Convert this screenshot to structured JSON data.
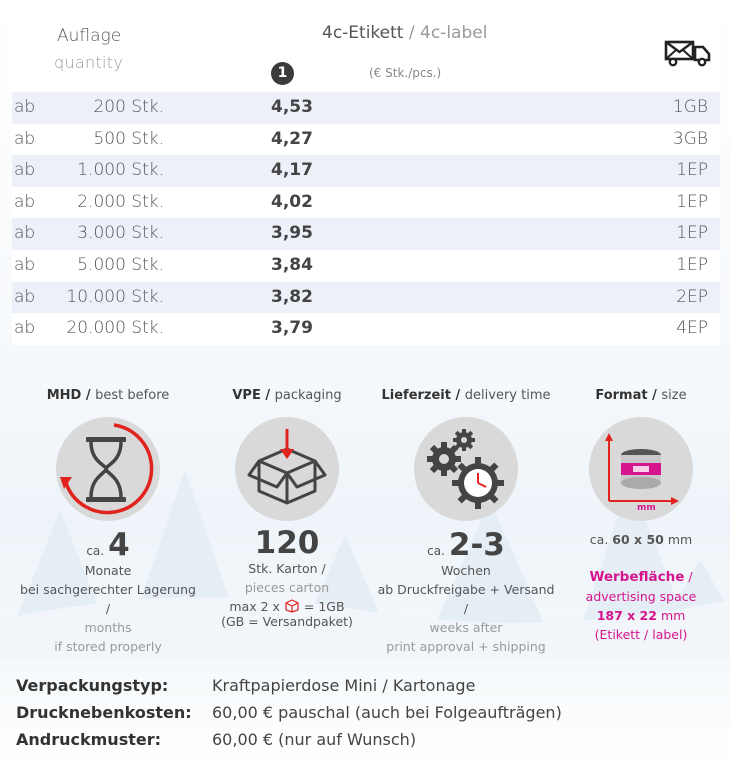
{
  "table": {
    "header": {
      "auflage": "Auflage",
      "quantity": "quantity",
      "title_de": "4c-Etikett",
      "title_sep": " / ",
      "title_en": "4c-label",
      "number_badge": "1",
      "unit": "(€ Stk./pcs.)"
    },
    "rows": [
      {
        "ab": "ab",
        "qty": "200 Stk.",
        "price": "4,53",
        "ship": "1GB"
      },
      {
        "ab": "ab",
        "qty": "500 Stk.",
        "price": "4,27",
        "ship": "3GB"
      },
      {
        "ab": "ab",
        "qty": "1.000 Stk.",
        "price": "4,17",
        "ship": "1EP"
      },
      {
        "ab": "ab",
        "qty": "2.000 Stk.",
        "price": "4,02",
        "ship": "1EP"
      },
      {
        "ab": "ab",
        "qty": "3.000 Stk.",
        "price": "3,95",
        "ship": "1EP"
      },
      {
        "ab": "ab",
        "qty": "5.000 Stk.",
        "price": "3,84",
        "ship": "1EP"
      },
      {
        "ab": "ab",
        "qty": "10.000 Stk.",
        "price": "3,82",
        "ship": "2EP"
      },
      {
        "ab": "ab",
        "qty": "20.000 Stk.",
        "price": "3,79",
        "ship": "4EP"
      }
    ],
    "ship_icon": "truck-mail-icon"
  },
  "features": {
    "mhd": {
      "title_de": "MHD /",
      "title_en": "best before",
      "icon": "hourglass-icon",
      "ca": "ca.",
      "value": "4",
      "l1": "Monate",
      "l2": "bei sachgerechter Lagerung /",
      "l3": "months",
      "l4": "if stored properly"
    },
    "vpe": {
      "title_de": "VPE /",
      "title_en": "packaging",
      "icon": "box-icon",
      "value": "120",
      "l1": "Stk. Karton /",
      "l2": "pieces carton",
      "l3a": "max 2 x",
      "l3b": "= 1GB",
      "l4": "(GB = Versandpaket)"
    },
    "delivery": {
      "title_de": "Lieferzeit /",
      "title_en": "delivery time",
      "icon": "gears-clock-icon",
      "ca": "ca.",
      "value": "2-3",
      "l1": "Wochen",
      "l2": "ab Druckfreigabe + Versand /",
      "l3": "weeks after",
      "l4": "print approval + shipping"
    },
    "format": {
      "title_de": "Format /",
      "title_en": "size",
      "icon": "can-dimension-icon",
      "mm_label": "mm",
      "ca": "ca.",
      "size": "60 x 50",
      "unit": "mm",
      "ad_de": "Werbefläche",
      "ad_sep": " /",
      "ad_en": "advertising space",
      "ad_size": "187 x 22",
      "ad_unit": "mm",
      "ad_note": "(Etikett / label)"
    }
  },
  "info": [
    {
      "key": "Verpackungstyp:",
      "value": "Kraftpapierdose Mini / Kartonage"
    },
    {
      "key": "Drucknebenkosten:",
      "value": "60,00 € pauschal (auch bei Folgeaufträgen)"
    },
    {
      "key": "Andruckmuster:",
      "value": "60,00 € (nur auf Wunsch)"
    }
  ],
  "colors": {
    "accent": "#d6148c",
    "red": "#e0231c",
    "row_alt": "#edf0f9",
    "icon_circle": "#d9d9da"
  }
}
